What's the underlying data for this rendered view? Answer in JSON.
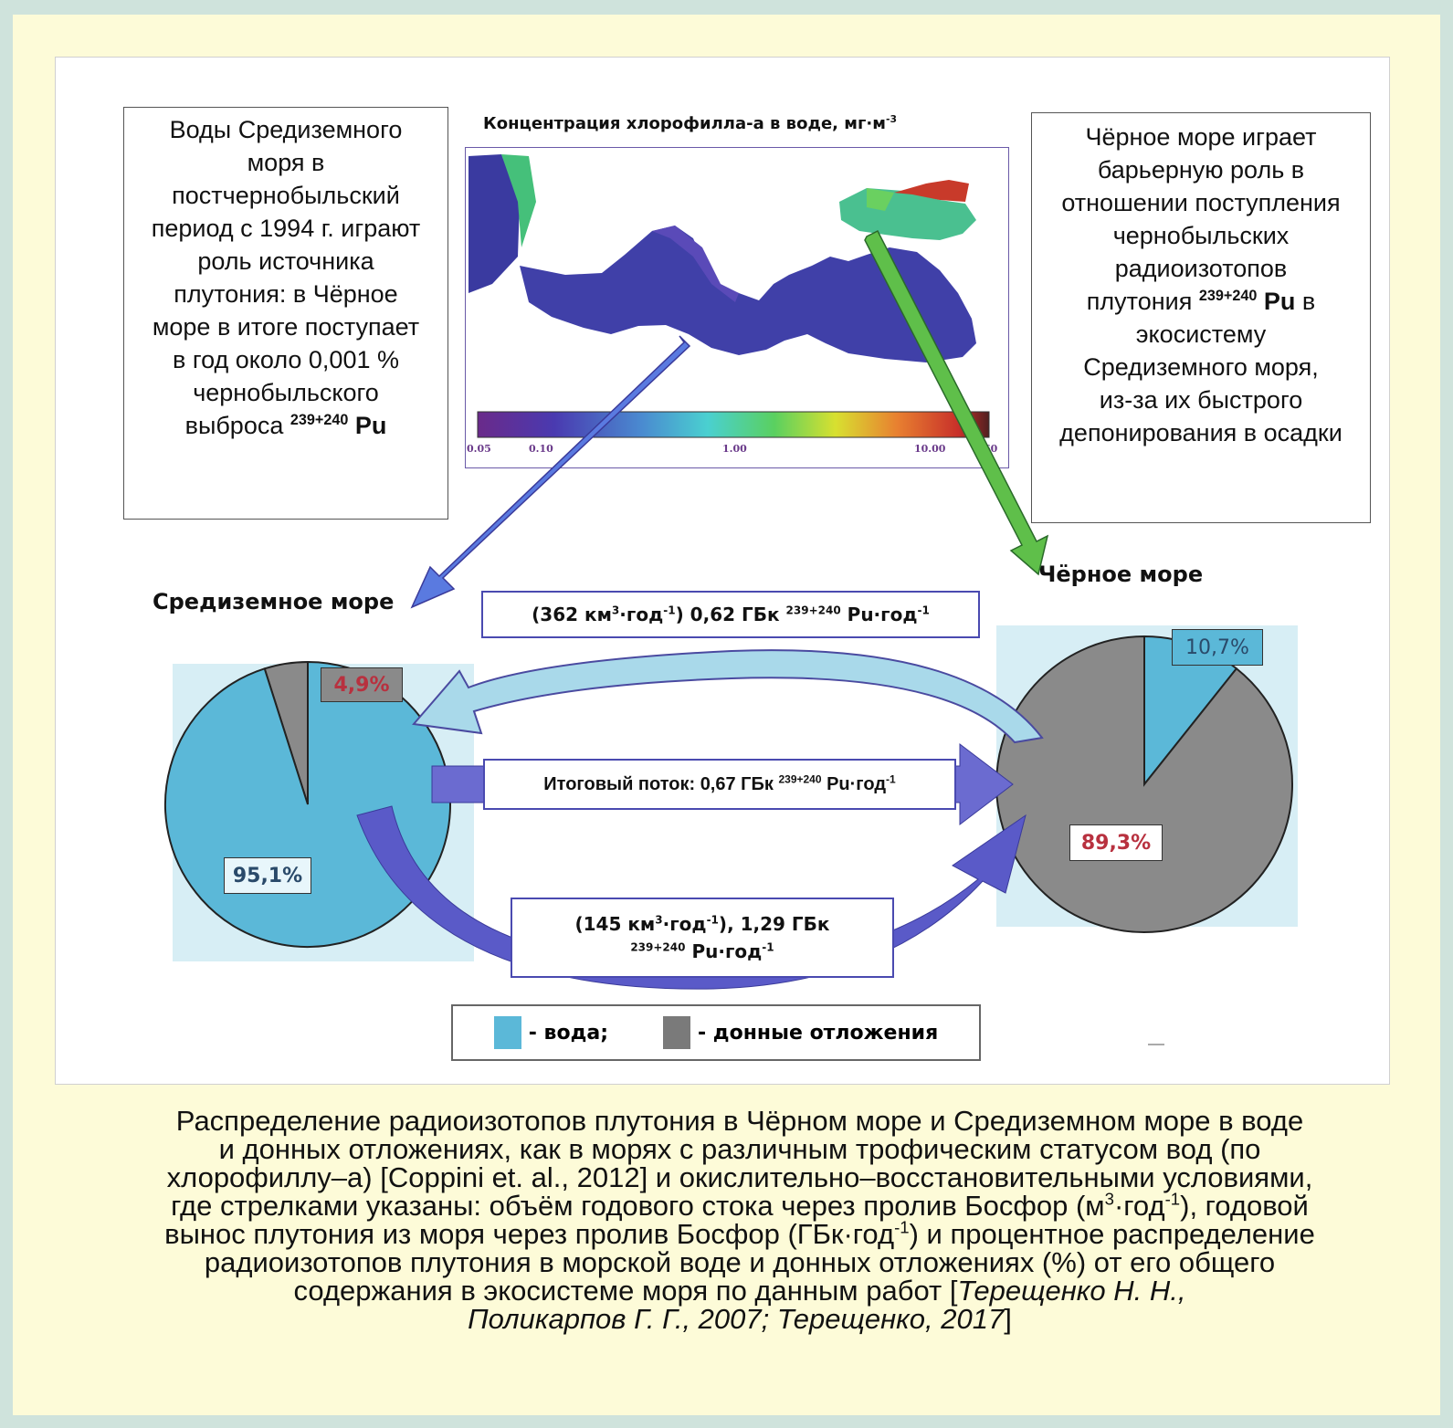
{
  "left_text": [
    "Воды Средиземного",
    "моря  в",
    "постчернобыльский",
    "период с 1994 г. играют",
    "роль источника",
    "плутония: в Чёрное",
    "море в итоге поступает",
    "в год около 0,001 %",
    "чернобыльского",
    "выброса"
  ],
  "left_isotope": "239+240",
  "left_element": "Pu",
  "right_text_a": [
    "Чёрное море играет",
    "барьерную роль в",
    "отношении поступления",
    "чернобыльских",
    "радиоизотопов"
  ],
  "right_text_b_prefix": "плутония",
  "right_isotope": "239+240",
  "right_element": "Pu",
  "right_text_b_suffix": "в",
  "right_text_c": [
    "экосистему",
    "Средиземного моря,",
    "из-за их быстрого",
    "депонирования в осадки"
  ],
  "map": {
    "title": "Концентрация хлорофилла-а в воде, мг·м",
    "title_sup": "-3",
    "scale_labels": [
      "0.05",
      "0.10",
      "1.00",
      "10.00",
      "60"
    ]
  },
  "sea_left": "Средиземное море",
  "sea_right": "Чёрное море",
  "flow_top": {
    "prefix": "(362 км",
    "sup1": "3",
    "mid": "·год",
    "sup2": "-1",
    "rest": ") 0,62 ГБк",
    "iso": "239+240",
    "el": "Pu·год",
    "sup3": "-1"
  },
  "flow_mid": {
    "prefix": "Итоговый поток: 0,67 ГБк",
    "iso": "239+240",
    "el": "Pu·год",
    "sup": "-1"
  },
  "flow_bottom": {
    "line1_a": "(145 км",
    "sup1": "3",
    "line1_b": "·год",
    "sup2": "-1",
    "line1_c": "),  1,29 ГБк",
    "iso": "239+240",
    "el": "Pu·год",
    "sup3": "-1"
  },
  "pie_left": {
    "water_label": "95,1%",
    "sediment_label": "4,9%",
    "water": 95.1,
    "sediment": 4.9
  },
  "pie_right": {
    "water_label": "10,7%",
    "sediment_label": "89,3%",
    "water": 10.7,
    "sediment": 89.3
  },
  "legend": {
    "water": "- вода;",
    "sediment": "- донные отложения"
  },
  "colors": {
    "water": "#5bb8d8",
    "sediment": "#8a8a8a",
    "arrow_blue": "#6b6bd0",
    "arrow_green": "#5fbf4a",
    "pct_red": "#b8313f",
    "bg_pie": "#d7eef5"
  },
  "caption": {
    "l1": "Распределение радиоизотопов плутония в Чёрном море и Средиземном море в воде",
    "l2": "и донных отложениях, как в морях с различным трофическим статусом вод (по",
    "l3": "хлорофиллу–а) [Coppini et. al., 2012] и окислительно–восстановительными условиями,",
    "l4a": "где стрелками указаны: объём годового стока через пролив Босфор (м",
    "l4sup1": "3",
    "l4b": "·год",
    "l4sup2": "-1",
    "l4c": "), годовой",
    "l5a": "вынос плутония из моря через пролив Босфор (ГБк·год",
    "l5sup": "-1",
    "l5b": ") и процентное распределение",
    "l6": "радиоизотопов плутония в морской воде и донных отложениях (%) от его общего",
    "l7a": "содержания в экосистеме моря по данным работ [",
    "l7i": "Терещенко Н. Н.,",
    "l8i": "Поликарпов Г. Г., 2007; Терещенко, 2017",
    "l8b": "]"
  }
}
